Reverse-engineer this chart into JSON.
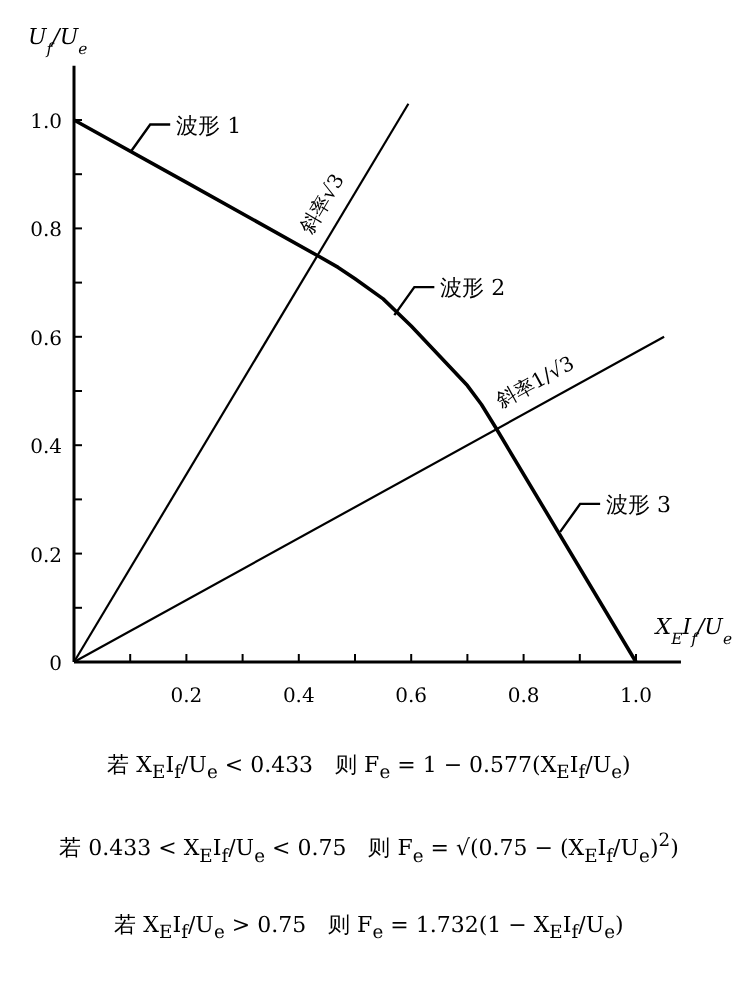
{
  "chart_data": {
    "type": "line",
    "xlabel": "X$_{E}$I$_{f}$/U$_{e}$",
    "ylabel": "U$_{f}$/U$_{e}$",
    "xlim": [
      0,
      1.08
    ],
    "ylim": [
      0,
      1.1
    ],
    "xticks": [
      {
        "value": 0.1,
        "label": null
      },
      {
        "value": 0.2,
        "label": "0.2"
      },
      {
        "value": 0.3,
        "label": null
      },
      {
        "value": 0.4,
        "label": "0.4"
      },
      {
        "value": 0.5,
        "label": null
      },
      {
        "value": 0.6,
        "label": "0.6"
      },
      {
        "value": 0.7,
        "label": null
      },
      {
        "value": 0.8,
        "label": "0.8"
      },
      {
        "value": 0.9,
        "label": null
      },
      {
        "value": 1,
        "label": "1.0"
      }
    ],
    "yticks": [
      {
        "value": 0,
        "label": "0"
      },
      {
        "value": 0.1,
        "label": null
      },
      {
        "value": 0.2,
        "label": "0.2"
      },
      {
        "value": 0.3,
        "label": null
      },
      {
        "value": 0.4,
        "label": "0.4"
      },
      {
        "value": 0.5,
        "label": null
      },
      {
        "value": 0.6,
        "label": "0.6"
      },
      {
        "value": 0.7,
        "label": null
      },
      {
        "value": 0.8,
        "label": "0.8"
      },
      {
        "value": 0.9,
        "label": null
      },
      {
        "value": 1,
        "label": "1.0"
      }
    ],
    "grid": false,
    "marker": "none",
    "line_style": "solid",
    "series": [
      {
        "color": "#000000",
        "x": [
          0,
          0.2,
          0.433,
          0.47,
          0.5,
          0.55,
          0.6,
          0.65,
          0.7,
          0.725,
          0.75,
          1.0
        ],
        "values": [
          1,
          0.885,
          0.75,
          0.728,
          0.707,
          0.67,
          0.62,
          0.565,
          0.51,
          0.475,
          0.433,
          0
        ]
      },
      {
        "name": "斜率√3",
        "color": "#000000",
        "x": [
          0,
          0.595
        ],
        "values": [
          0,
          1.03
        ]
      },
      {
        "name": "斜率1/√3",
        "color": "#000000",
        "x": [
          0,
          1.05
        ],
        "values": [
          0,
          0.6
        ]
      }
    ],
    "annotations": [
      {
        "text": "波形 1",
        "x": 0.1,
        "y": 0.94
      },
      {
        "text": "波形 2",
        "x": 0.57,
        "y": 0.64
      },
      {
        "text": "波形 3",
        "x": 0.865,
        "y": 0.24
      },
      "若 X$_{E}$I$_{f}$/U$_{e}$ < 0.433　则 F$_{e}$ = 1 − 0.577(X$_{E}$I$_{f}$/U$_{e}$)",
      "若 0.433 < X$_{E}$I$_{f}$/U$_{e}$ < 0.75　则 F$_{e}$ = √(0.75 − (X$_{E}$I$_{f}$/U$_{e}$)$^{2}$)",
      "若 X$_{E}$I$_{f}$/U$_{e}$ > 0.75　则 F$_{e}$ = 1.732(1 − X$_{E}$I$_{f}$/U$_{e}$)"
    ]
  }
}
